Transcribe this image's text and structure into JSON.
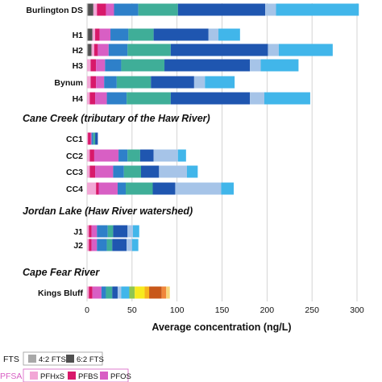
{
  "chart_data": {
    "type": "bar",
    "orientation": "horizontal",
    "stacked": true,
    "xlabel": "Average concentration (ng/L)",
    "xlim": [
      0,
      300
    ],
    "xticks": [
      0,
      50,
      100,
      150,
      200,
      250,
      300
    ],
    "grid": true,
    "legend_position": "bottom-left",
    "series_keys": [
      "fts42",
      "fts62",
      "pfhxs",
      "pfbs",
      "pfos",
      "s6",
      "s7",
      "s8",
      "s9",
      "s10",
      "s11",
      "s12",
      "s13",
      "s14",
      "s15",
      "s16"
    ],
    "colors": {
      "fts42": "#a8a8a8",
      "fts62": "#505050",
      "pfhxs": "#f2a7d6",
      "pfbs": "#d8196a",
      "pfos": "#d85fc4",
      "s6": "#2e80c9",
      "s7": "#3fae98",
      "s8": "#1f56b0",
      "s9": "#a6c4e8",
      "s10": "#41b6ea",
      "s11": "#8fc650",
      "s12": "#f7ea1e",
      "s13": "#f7b31c",
      "s14": "#c8581a",
      "s15": "#f0863a",
      "s16": "#f7d67a"
    },
    "groups": [
      {
        "title": "",
        "rows": [
          {
            "label": "Burlington DS",
            "segments": [
              [
                "fts42",
                1
              ],
              [
                "fts62",
                6
              ],
              [
                "pfhxs",
                4
              ],
              [
                "pfbs",
                10
              ],
              [
                "pfos",
                9
              ],
              [
                "s6",
                27
              ],
              [
                "s7",
                44
              ],
              [
                "s8",
                97
              ],
              [
                "s9",
                12
              ],
              [
                "s10",
                92
              ]
            ]
          }
        ]
      },
      {
        "title": "",
        "rows": [
          {
            "label": "H1",
            "segments": [
              [
                "fts42",
                1
              ],
              [
                "fts62",
                5
              ],
              [
                "pfhxs",
                3
              ],
              [
                "pfbs",
                5
              ],
              [
                "pfos",
                12
              ],
              [
                "s6",
                20
              ],
              [
                "s7",
                28
              ],
              [
                "s8",
                61
              ],
              [
                "s9",
                11
              ],
              [
                "s10",
                24
              ]
            ]
          },
          {
            "label": "H2",
            "segments": [
              [
                "fts42",
                1
              ],
              [
                "fts62",
                4
              ],
              [
                "pfhxs",
                3
              ],
              [
                "pfbs",
                4
              ],
              [
                "pfos",
                12
              ],
              [
                "s6",
                21
              ],
              [
                "s7",
                48
              ],
              [
                "s8",
                108
              ],
              [
                "s9",
                12
              ],
              [
                "s10",
                60
              ]
            ]
          },
          {
            "label": "H3",
            "segments": [
              [
                "pfhxs",
                4
              ],
              [
                "pfbs",
                6
              ],
              [
                "pfos",
                10
              ],
              [
                "s6",
                18
              ],
              [
                "s7",
                48
              ],
              [
                "s8",
                95
              ],
              [
                "s9",
                12
              ],
              [
                "s10",
                42
              ]
            ]
          },
          {
            "label": "Bynum",
            "segments": [
              [
                "pfhxs",
                4
              ],
              [
                "pfbs",
                6
              ],
              [
                "pfos",
                9
              ],
              [
                "s6",
                14
              ],
              [
                "s7",
                38
              ],
              [
                "s8",
                48
              ],
              [
                "s9",
                12
              ],
              [
                "s10",
                33
              ]
            ]
          },
          {
            "label": "H4",
            "segments": [
              [
                "pfhxs",
                3
              ],
              [
                "pfbs",
                6
              ],
              [
                "pfos",
                13
              ],
              [
                "s6",
                22
              ],
              [
                "s7",
                49
              ],
              [
                "s8",
                88
              ],
              [
                "s9",
                16
              ],
              [
                "s10",
                51
              ]
            ]
          }
        ]
      },
      {
        "title": "Cane Creek (tributary of the Haw River)",
        "rows": [
          {
            "label": "CC1",
            "segments": [
              [
                "pfhxs",
                1
              ],
              [
                "pfbs",
                3
              ],
              [
                "pfos",
                1
              ],
              [
                "s6",
                2
              ],
              [
                "s7",
                2
              ],
              [
                "s8",
                3
              ]
            ]
          },
          {
            "label": "CC2",
            "segments": [
              [
                "pfhxs",
                3
              ],
              [
                "pfbs",
                5
              ],
              [
                "pfos",
                27
              ],
              [
                "s6",
                10
              ],
              [
                "s7",
                14
              ],
              [
                "s8",
                15
              ],
              [
                "s9",
                27
              ],
              [
                "s10",
                9
              ]
            ]
          },
          {
            "label": "CC3",
            "segments": [
              [
                "pfhxs",
                3
              ],
              [
                "pfbs",
                6
              ],
              [
                "pfos",
                20
              ],
              [
                "s6",
                12
              ],
              [
                "s7",
                19
              ],
              [
                "s8",
                20
              ],
              [
                "s9",
                31
              ],
              [
                "s10",
                12
              ]
            ]
          },
          {
            "label": "CC4",
            "segments": [
              [
                "pfhxs",
                10
              ],
              [
                "pfbs",
                3
              ],
              [
                "pfos",
                21
              ],
              [
                "s6",
                9
              ],
              [
                "s7",
                30
              ],
              [
                "s8",
                25
              ],
              [
                "s9",
                51
              ],
              [
                "s10",
                14
              ]
            ]
          }
        ]
      },
      {
        "title": "Jordan Lake (Haw River watershed)",
        "rows": [
          {
            "label": "J1",
            "segments": [
              [
                "pfhxs",
                2
              ],
              [
                "pfbs",
                3
              ],
              [
                "pfos",
                6
              ],
              [
                "s6",
                12
              ],
              [
                "s7",
                6
              ],
              [
                "s8",
                16
              ],
              [
                "s9",
                6
              ],
              [
                "s10",
                7
              ]
            ]
          },
          {
            "label": "J2",
            "segments": [
              [
                "pfhxs",
                2
              ],
              [
                "pfbs",
                3
              ],
              [
                "pfos",
                6
              ],
              [
                "s6",
                11
              ],
              [
                "s7",
                6
              ],
              [
                "s8",
                16
              ],
              [
                "s9",
                6
              ],
              [
                "s10",
                7
              ]
            ]
          }
        ]
      },
      {
        "title": "Cape Fear River",
        "rows": [
          {
            "label": "Kings Bluff",
            "segments": [
              [
                "pfhxs",
                2
              ],
              [
                "pfbs",
                4
              ],
              [
                "pfos",
                10
              ],
              [
                "s6",
                5
              ],
              [
                "s7",
                7
              ],
              [
                "s8",
                6
              ],
              [
                "s9",
                4
              ],
              [
                "s10",
                9
              ],
              [
                "s11",
                6
              ],
              [
                "s12",
                11
              ],
              [
                "s13",
                5
              ],
              [
                "s14",
                14
              ],
              [
                "s15",
                5
              ],
              [
                "s16",
                4
              ]
            ]
          }
        ]
      }
    ],
    "legend": [
      {
        "group": "FTS",
        "items": [
          {
            "key": "fts42",
            "label": "4:2 FTS"
          },
          {
            "key": "fts62",
            "label": "6:2 FTS"
          }
        ]
      },
      {
        "group": "PFSA",
        "items": [
          {
            "key": "pfhxs",
            "label": "PFHxS"
          },
          {
            "key": "pfbs",
            "label": "PFBS"
          },
          {
            "key": "pfos",
            "label": "PFOS"
          }
        ]
      }
    ]
  }
}
